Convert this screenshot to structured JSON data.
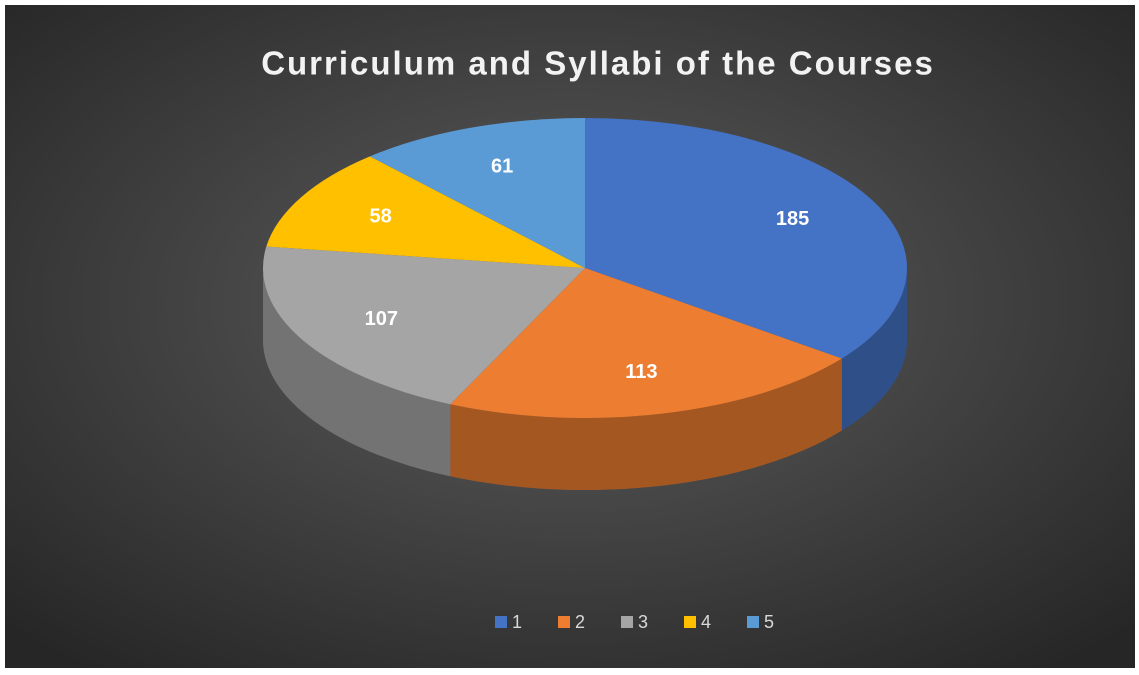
{
  "chart_data": {
    "type": "pie",
    "title": "Curriculum and Syllabi of the Courses",
    "categories": [
      "1",
      "2",
      "3",
      "4",
      "5"
    ],
    "values": [
      185,
      113,
      107,
      58,
      61
    ],
    "colors": [
      "#4472c4",
      "#ed7d31",
      "#a5a5a5",
      "#ffc000",
      "#5b9bd5"
    ],
    "legend": "bottom"
  }
}
